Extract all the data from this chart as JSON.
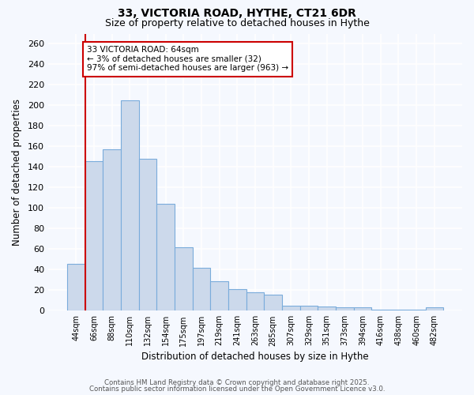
{
  "title_line1": "33, VICTORIA ROAD, HYTHE, CT21 6DR",
  "title_line2": "Size of property relative to detached houses in Hythe",
  "xlabel": "Distribution of detached houses by size in Hythe",
  "ylabel": "Number of detached properties",
  "categories": [
    "44sqm",
    "66sqm",
    "88sqm",
    "110sqm",
    "132sqm",
    "154sqm",
    "175sqm",
    "197sqm",
    "219sqm",
    "241sqm",
    "263sqm",
    "285sqm",
    "307sqm",
    "329sqm",
    "351sqm",
    "373sqm",
    "394sqm",
    "416sqm",
    "438sqm",
    "460sqm",
    "482sqm"
  ],
  "values": [
    46,
    146,
    157,
    205,
    148,
    104,
    62,
    42,
    29,
    21,
    18,
    16,
    5,
    5,
    4,
    3,
    3,
    1,
    1,
    1,
    3
  ],
  "bar_color": "#ccd9eb",
  "bar_edge_color": "#7aacdb",
  "red_line_color": "#cc0000",
  "annotation_title": "33 VICTORIA ROAD: 64sqm",
  "annotation_line2": "← 3% of detached houses are smaller (32)",
  "annotation_line3": "97% of semi-detached houses are larger (963) →",
  "annotation_box_facecolor": "white",
  "annotation_box_edgecolor": "#cc0000",
  "ylim": [
    0,
    270
  ],
  "yticks": [
    0,
    20,
    40,
    60,
    80,
    100,
    120,
    140,
    160,
    180,
    200,
    220,
    240,
    260
  ],
  "background_color": "#f5f8fe",
  "grid_color": "white",
  "footer_line1": "Contains HM Land Registry data © Crown copyright and database right 2025.",
  "footer_line2": "Contains public sector information licensed under the Open Government Licence v3.0."
}
